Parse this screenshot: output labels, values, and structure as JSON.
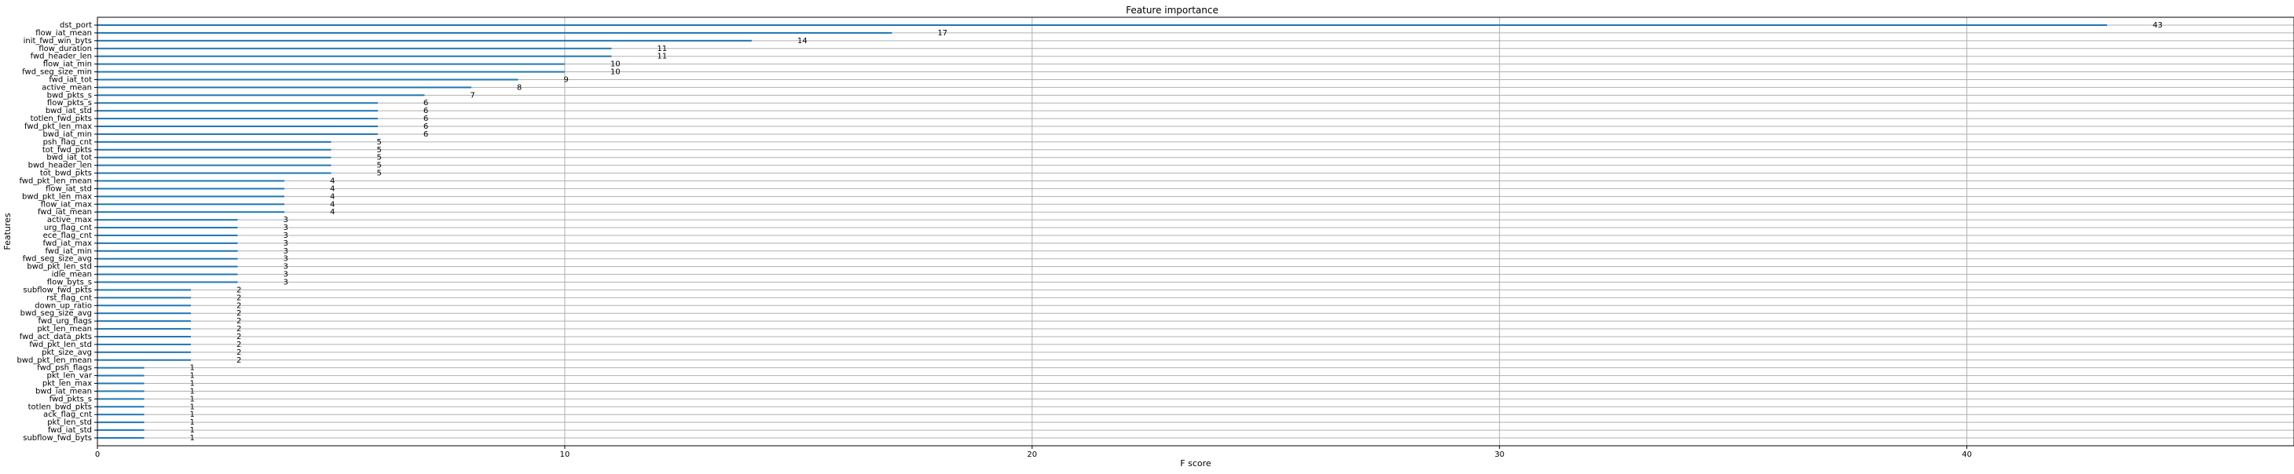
{
  "chart_data": {
    "type": "bar",
    "orientation": "horizontal",
    "title": "Feature importance",
    "xlabel": "F score",
    "ylabel": "Features",
    "xlim": [
      0,
      47
    ],
    "xticks": [
      0,
      10,
      20,
      30,
      40
    ],
    "grid": true,
    "bar_color": "#1f77b4",
    "categories": [
      "dst_port",
      "flow_iat_mean",
      "init_fwd_win_byts",
      "flow_duration",
      "fwd_header_len",
      "flow_iat_min",
      "fwd_seg_size_min",
      "fwd_iat_tot",
      "active_mean",
      "bwd_pkts_s",
      "flow_pkts_s",
      "bwd_iat_std",
      "totlen_fwd_pkts",
      "fwd_pkt_len_max",
      "bwd_iat_min",
      "psh_flag_cnt",
      "tot_fwd_pkts",
      "bwd_iat_tot",
      "bwd_header_len",
      "tot_bwd_pkts",
      "fwd_pkt_len_mean",
      "flow_iat_std",
      "bwd_pkt_len_max",
      "flow_iat_max",
      "fwd_iat_mean",
      "active_max",
      "urg_flag_cnt",
      "ece_flag_cnt",
      "fwd_iat_max",
      "fwd_iat_min",
      "fwd_seg_size_avg",
      "bwd_pkt_len_std",
      "idle_mean",
      "flow_byts_s",
      "subflow_fwd_pkts",
      "rst_flag_cnt",
      "down_up_ratio",
      "bwd_seg_size_avg",
      "fwd_urg_flags",
      "pkt_len_mean",
      "fwd_act_data_pkts",
      "fwd_pkt_len_std",
      "pkt_size_avg",
      "bwd_pkt_len_mean",
      "fwd_psh_flags",
      "pkt_len_var",
      "pkt_len_max",
      "bwd_iat_mean",
      "fwd_pkts_s",
      "totlen_bwd_pkts",
      "ack_flag_cnt",
      "pkt_len_std",
      "fwd_iat_std",
      "subflow_fwd_byts"
    ],
    "values": [
      43,
      17,
      14,
      11,
      11,
      10,
      10,
      9,
      8,
      7,
      6,
      6,
      6,
      6,
      6,
      5,
      5,
      5,
      5,
      5,
      4,
      4,
      4,
      4,
      4,
      3,
      3,
      3,
      3,
      3,
      3,
      3,
      3,
      3,
      2,
      2,
      2,
      2,
      2,
      2,
      2,
      2,
      2,
      2,
      1,
      1,
      1,
      1,
      1,
      1,
      1,
      1,
      1,
      1
    ]
  }
}
